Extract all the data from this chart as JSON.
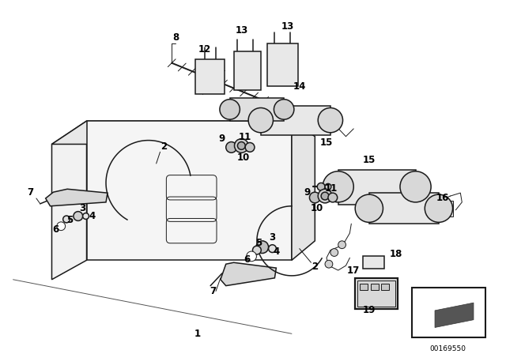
{
  "bg_color": "#ffffff",
  "line_color": "#1a1a1a",
  "diagram_id": "00169550",
  "lw_main": 1.1,
  "lw_thin": 0.7,
  "label_fs": 8.5
}
